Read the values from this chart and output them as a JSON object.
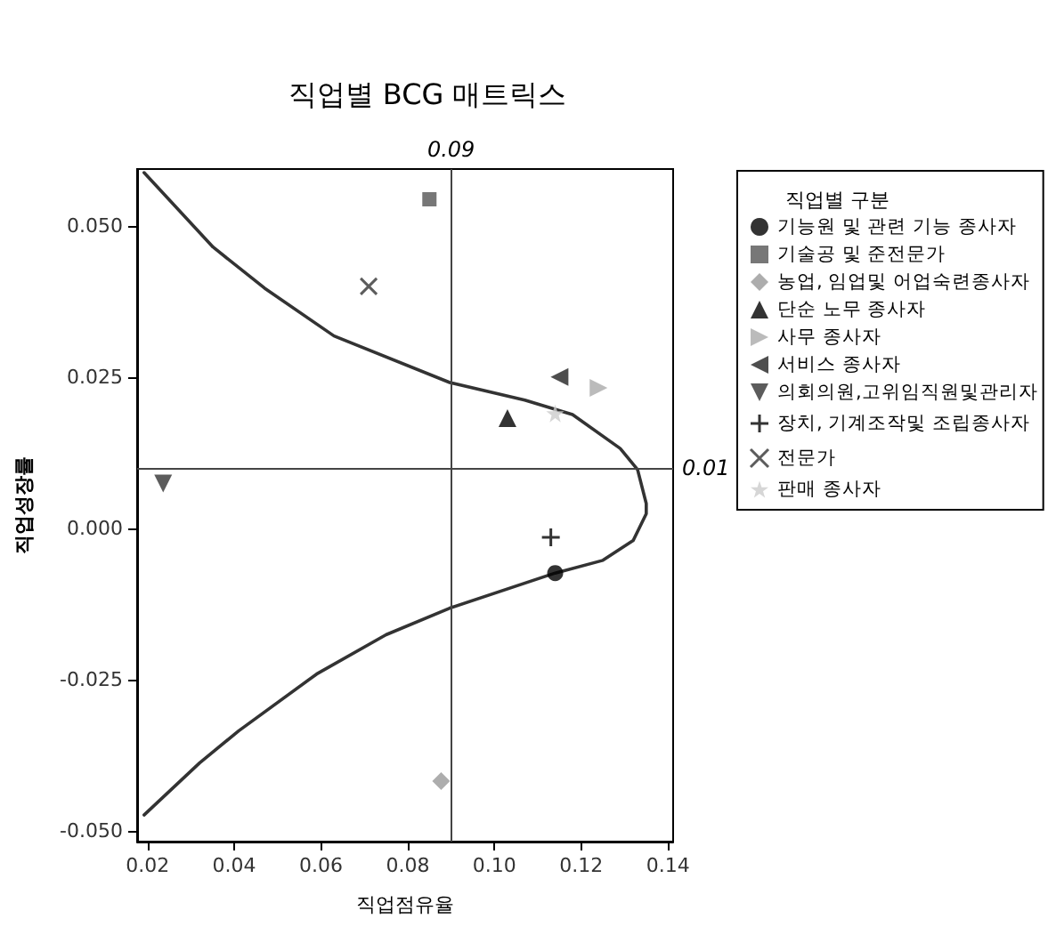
{
  "chart_data": {
    "type": "scatter",
    "title": "직업별 BCG 매트릭스",
    "xlabel": "직업점유율",
    "ylabel": "직업성장률",
    "legend_title": "직업별 구분",
    "xlim": [
      0.0176,
      0.1412
    ],
    "ylim": [
      -0.0518,
      0.0594
    ],
    "xticks": [
      {
        "value": 0.02,
        "label": "0.02"
      },
      {
        "value": 0.04,
        "label": "0.04"
      },
      {
        "value": 0.06,
        "label": "0.06"
      },
      {
        "value": 0.08,
        "label": "0.08"
      },
      {
        "value": 0.1,
        "label": "0.10"
      },
      {
        "value": 0.12,
        "label": "0.12"
      },
      {
        "value": 0.14,
        "label": "0.14"
      }
    ],
    "yticks": [
      {
        "value": -0.05,
        "label": "-0.050"
      },
      {
        "value": -0.025,
        "label": "-0.025"
      },
      {
        "value": 0,
        "label": "0.000"
      },
      {
        "value": 0.025,
        "label": "0.025"
      },
      {
        "value": 0.05,
        "label": "0.050"
      }
    ],
    "grid": false,
    "legend": "right",
    "ref_lines": [
      {
        "axis": "x",
        "value": 0.09,
        "label": "0.09"
      },
      {
        "axis": "y",
        "value": 0.01,
        "label": "0.01"
      }
    ],
    "series": [
      {
        "name": "기능원 및 관련 기능 종사자",
        "color": "#000000",
        "marker": "circle",
        "x": [
          0.114
        ],
        "values": [
          -0.0074
        ]
      },
      {
        "name": "기술공 및 준전문가",
        "color": "#555555",
        "marker": "square",
        "x": [
          0.085
        ],
        "values": [
          0.0544
        ]
      },
      {
        "name": "농업, 임업및 어업숙련종사자",
        "color": "#999999",
        "marker": "diamond",
        "x": [
          0.0877
        ],
        "values": [
          -0.0418
        ]
      },
      {
        "name": "단순 노무 종사자",
        "color": "#000000",
        "marker": "triangle",
        "x": [
          0.103
        ],
        "values": [
          0.0182
        ]
      },
      {
        "name": "사무 종사자",
        "color": "#aaaaaa",
        "marker": "triangle-right",
        "x": [
          0.124
        ],
        "values": [
          0.0232
        ]
      },
      {
        "name": "서비스 종사자",
        "color": "#222222",
        "marker": "triangle-left",
        "x": [
          0.115
        ],
        "values": [
          0.025
        ]
      },
      {
        "name": "의회의원,고위임직원및관리자",
        "color": "#333333",
        "marker": "triangle-down",
        "x": [
          0.0236
        ],
        "values": [
          0.0074
        ]
      },
      {
        "name": "장치, 기계조작및 조립종사자",
        "color": "#000000",
        "marker": "plus",
        "x": [
          0.113
        ],
        "values": [
          -0.0015
        ]
      },
      {
        "name": "전문가",
        "color": "#333333",
        "marker": "cross",
        "x": [
          0.071
        ],
        "values": [
          0.04
        ]
      },
      {
        "name": "판매 종사자",
        "color": "#cccccc",
        "marker": "star",
        "x": [
          0.114
        ],
        "values": [
          0.019
        ]
      },
      {
        "type": "line",
        "color": "#333333",
        "marker": "none",
        "line_style": "solid",
        "x": [
          0.0192,
          0.0351,
          0.047,
          0.063,
          0.0897,
          0.107,
          0.118,
          0.129,
          0.133,
          0.135,
          0.135,
          0.132,
          0.125,
          0.114,
          0.0897,
          0.075,
          0.059,
          0.041,
          0.032,
          0.0192
        ],
        "values": [
          0.0588,
          0.0465,
          0.0397,
          0.0318,
          0.0241,
          0.0212,
          0.0188,
          0.0132,
          0.0097,
          0.0041,
          0.0024,
          -0.002,
          -0.0053,
          -0.0074,
          -0.0132,
          -0.0176,
          -0.0241,
          -0.0335,
          -0.0388,
          -0.0474
        ]
      }
    ]
  }
}
